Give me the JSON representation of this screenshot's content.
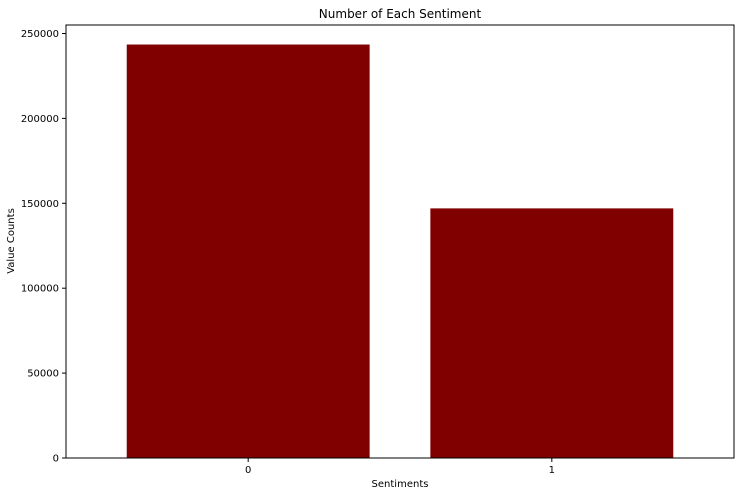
{
  "chart_data": {
    "type": "bar",
    "title": "Number of Each Sentiment",
    "xlabel": "Sentiments",
    "ylabel": "Value Counts",
    "categories": [
      "0",
      "1"
    ],
    "values": [
      243500,
      147000
    ],
    "ylim": [
      0,
      255000
    ],
    "yticks": [
      0,
      50000,
      100000,
      150000,
      200000,
      250000
    ],
    "ytick_labels": [
      "0",
      "50000",
      "100000",
      "150000",
      "200000",
      "250000"
    ],
    "bar_color": "#800000",
    "grid": false,
    "legend": "none"
  }
}
